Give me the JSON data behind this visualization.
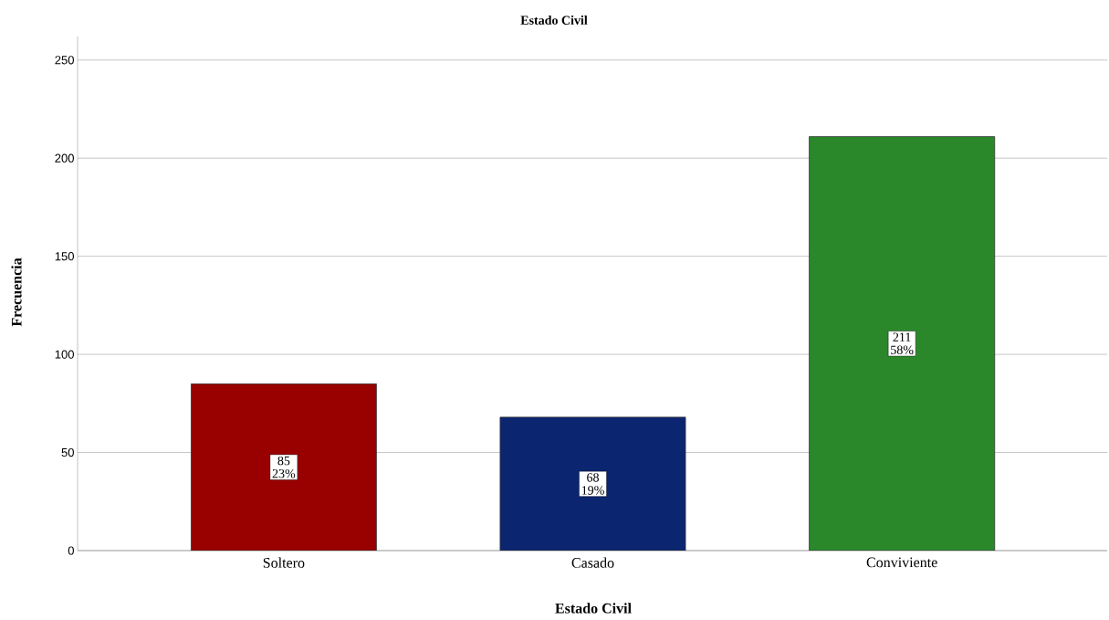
{
  "chart_data": {
    "type": "bar",
    "title": "Estado Civil",
    "xlabel": "Estado Civil",
    "ylabel": "Frecuencia",
    "categories": [
      "Soltero",
      "Casado",
      "Conviviente"
    ],
    "values": [
      85,
      68,
      211
    ],
    "colors": [
      "#990000",
      "#0b2570",
      "#2a882a"
    ],
    "value_labels": [
      "85 23%",
      "68 19%",
      "211 58%"
    ],
    "ylim": [
      0,
      262
    ],
    "yticks": [
      0,
      50,
      100,
      150,
      200,
      250
    ],
    "grid": "y"
  }
}
